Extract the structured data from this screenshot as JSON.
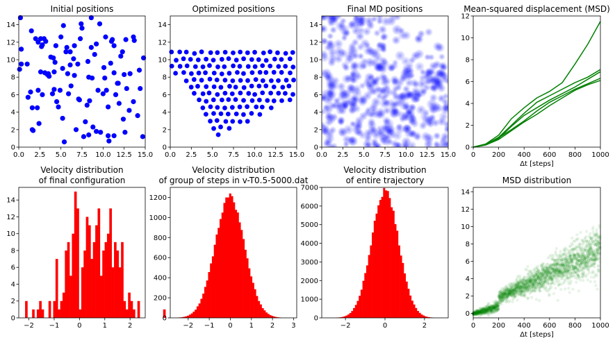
{
  "chart_data": [
    {
      "type": "scatter",
      "title": "Initial positions",
      "xlim": [
        0,
        15
      ],
      "ylim": [
        0,
        15
      ],
      "xticks": [
        "0.0",
        "2.5",
        "5.0",
        "7.5",
        "10.0",
        "12.5",
        "15.0"
      ],
      "yticks": [
        "0",
        "2",
        "4",
        "6",
        "8",
        "10",
        "12",
        "14"
      ],
      "color": "#0000ff",
      "x": [
        0.2,
        1.5,
        1.6,
        2.0,
        2.6,
        2.6,
        3.2,
        3.4,
        3.8,
        4.1,
        4.5,
        4.7,
        5.3,
        5.4,
        5.7,
        6.1,
        6.6,
        7.4,
        7.7,
        8.3,
        8.4,
        8.6,
        9.2,
        10.1,
        10.4,
        10.6,
        10.7,
        11.3,
        11.8,
        12.1,
        12.6,
        12.7,
        13.1,
        13.2,
        14.3,
        14.8,
        0.3,
        1.6,
        2.3,
        2.4,
        2.7,
        3.0,
        3.6,
        4.0,
        4.2,
        4.4,
        5.0,
        5.2,
        5.8,
        6.5,
        6.6,
        7.3,
        7.9,
        8.2,
        8.7,
        9.0,
        9.6,
        10.2,
        10.6,
        11.1,
        11.5,
        11.9,
        12.3,
        12.5,
        13.6,
        14.4,
        0.1,
        1.0,
        1.7,
        2.2,
        2.8,
        3.5,
        4.9,
        5.6,
        6.2,
        7.0,
        7.5,
        8.1,
        8.6,
        9.4,
        10.0,
        10.9,
        11.3,
        12.4,
        13.7,
        14.7,
        0.3,
        1.4,
        2.8,
        3.1,
        4.2,
        5.2,
        5.9,
        6.8,
        7.1,
        8.8,
        9.7,
        11.3,
        11.7,
        12.8,
        13.6,
        14.1,
        1.1,
        2.3,
        4.3,
        6.1,
        7.2,
        8.3,
        9.2,
        10.3,
        11.0
      ],
      "y": [
        14.8,
        13.3,
        2.0,
        12.4,
        12.4,
        8.6,
        12.1,
        8.3,
        10.3,
        10.2,
        5.2,
        4.6,
        13.9,
        0.6,
        11.4,
        9.4,
        8.2,
        14.1,
        1.2,
        8.0,
        5.3,
        14.8,
        1.8,
        9.1,
        6.5,
        1.3,
        0.7,
        1.3,
        7.3,
        10.4,
        1.7,
        12.3,
        4.2,
        8.4,
        8.8,
        10.2,
        9.5,
        4.5,
        6.5,
        2.7,
        11.5,
        12.4,
        8.1,
        6.1,
        8.6,
        11.6,
        12.6,
        9.0,
        8.4,
        10.1,
        11.6,
        12.4,
        2.9,
        9.8,
        7.9,
        10.6,
        14.1,
        7.9,
        4.6,
        12.3,
        6.0,
        5.0,
        10.9,
        8.3,
        12.6,
        6.7,
        8.9,
        9.5,
        1.9,
        4.5,
        6.0,
        8.4,
        6.5,
        10.9,
        7.0,
        9.5,
        13.6,
        4.8,
        11.4,
        6.5,
        6.1,
        9.6,
        8.5,
        3.2,
        12.2,
        1.2,
        11.2,
        6.3,
        11.7,
        8.5,
        6.6,
        3.3,
        6.1,
        2.0,
        5.5,
        2.3,
        1.7,
        11.6,
        7.3,
        6.7,
        5.2,
        3.6,
        5.7,
        12.0,
        9.7,
        10.9,
        5.4,
        1.4,
        11.8,
        12.6,
        12.1
      ]
    },
    {
      "type": "scatter",
      "title": "Optimized positions",
      "xlim": [
        0,
        15
      ],
      "ylim": [
        0,
        15
      ],
      "xticks": [
        "0.0",
        "2.5",
        "5.0",
        "7.5",
        "10.0",
        "12.5",
        "15.0"
      ],
      "yticks": [
        "0",
        "2",
        "4",
        "6",
        "8",
        "10",
        "12",
        "14"
      ],
      "color": "#0000ff"
    },
    {
      "type": "heatmap",
      "title": "Final MD positions",
      "xlim": [
        0,
        15
      ],
      "ylim": [
        0,
        15
      ],
      "xticks": [
        "0.0",
        "2.5",
        "5.0",
        "7.5",
        "10.0",
        "12.5",
        "15.0"
      ],
      "yticks": [
        "0",
        "2",
        "4",
        "6",
        "8",
        "10",
        "12",
        "14"
      ],
      "color": "#0000ff"
    },
    {
      "type": "line",
      "title": "Mean-squared displacement (MSD)",
      "xlabel": "Δt [steps]",
      "xlim": [
        0,
        1000
      ],
      "ylim": [
        0,
        12
      ],
      "xticks": [
        "0",
        "200",
        "400",
        "600",
        "800",
        "1000"
      ],
      "yticks": [
        "0",
        "2",
        "4",
        "6",
        "8",
        "10",
        "12"
      ],
      "color": "#008000",
      "x": [
        0,
        100,
        200,
        300,
        400,
        500,
        600,
        700,
        800,
        900,
        1000
      ],
      "series": [
        {
          "values": [
            0,
            0.25,
            0.9,
            2.0,
            3.1,
            4.1,
            4.7,
            5.3,
            5.9,
            6.4,
            7.1
          ]
        },
        {
          "values": [
            0,
            0.2,
            0.8,
            1.9,
            2.9,
            3.6,
            4.3,
            4.9,
            5.5,
            6.2,
            6.9
          ]
        },
        {
          "values": [
            0,
            0.25,
            0.85,
            1.6,
            2.4,
            3.3,
            4.1,
            4.7,
            5.3,
            5.8,
            6.3
          ]
        },
        {
          "values": [
            0,
            0.2,
            0.7,
            1.5,
            2.3,
            3.0,
            3.8,
            4.5,
            5.2,
            5.7,
            6.1
          ]
        },
        {
          "values": [
            0,
            0.3,
            1.1,
            2.6,
            3.6,
            4.5,
            5.1,
            5.9,
            7.6,
            9.4,
            11.5
          ]
        }
      ]
    },
    {
      "type": "bar",
      "title": "Velocity distribution\nof final configuration",
      "xlim": [
        -2.4,
        2.6
      ],
      "ylim": [
        0,
        15.5
      ],
      "xticks": [
        "−2",
        "−1",
        "0",
        "1",
        "2"
      ],
      "yticks": [
        "0",
        "2",
        "4",
        "6",
        "8",
        "10",
        "12",
        "14"
      ],
      "color": "#ff0000",
      "bin_start": -2.15,
      "bin_width": 0.0925,
      "values": [
        2,
        0,
        0,
        1,
        0,
        1,
        2,
        1,
        0,
        0,
        2,
        0,
        2,
        7,
        1,
        2,
        3,
        8,
        9,
        5,
        10,
        15,
        13,
        1,
        6,
        8,
        12,
        11,
        7,
        9,
        11,
        13,
        5,
        8,
        9,
        10,
        13,
        6,
        9,
        8,
        6,
        9,
        2,
        1,
        3,
        2,
        1,
        0,
        2,
        0,
        0,
        0,
        0,
        0,
        0,
        0,
        0,
        0,
        0,
        1
      ]
    },
    {
      "type": "bar",
      "title": "Velocity distribution\nof group of steps in v-T0.5-5000.dat",
      "xlim": [
        -2.85,
        3.15
      ],
      "ylim": [
        0,
        1300
      ],
      "xticks": [
        "−2",
        "−1",
        "0",
        "1",
        "2",
        "3"
      ],
      "yticks": [
        "0",
        "200",
        "400",
        "600",
        "800",
        "1000",
        "1200"
      ],
      "color": "#ff0000"
    },
    {
      "type": "bar",
      "title": "Velocity distribution\nof entire trajectory",
      "xlim": [
        -3.2,
        3.2
      ],
      "ylim": [
        0,
        7000
      ],
      "xticks": [
        "−2",
        "0",
        "2"
      ],
      "yticks": [
        "0",
        "1000",
        "2000",
        "3000",
        "4000",
        "5000",
        "6000",
        "7000"
      ],
      "color": "#ff0000"
    },
    {
      "type": "heatmap",
      "title": "MSD distribution",
      "xlabel": "Δt [steps]",
      "xlim": [
        0,
        1000
      ],
      "ylim": [
        -0.5,
        14.5
      ],
      "xticks": [
        "0",
        "200",
        "400",
        "600",
        "800",
        "1000"
      ],
      "yticks": [
        "0",
        "2",
        "4",
        "6",
        "8",
        "10",
        "12",
        "14"
      ],
      "color": "#008000"
    }
  ]
}
